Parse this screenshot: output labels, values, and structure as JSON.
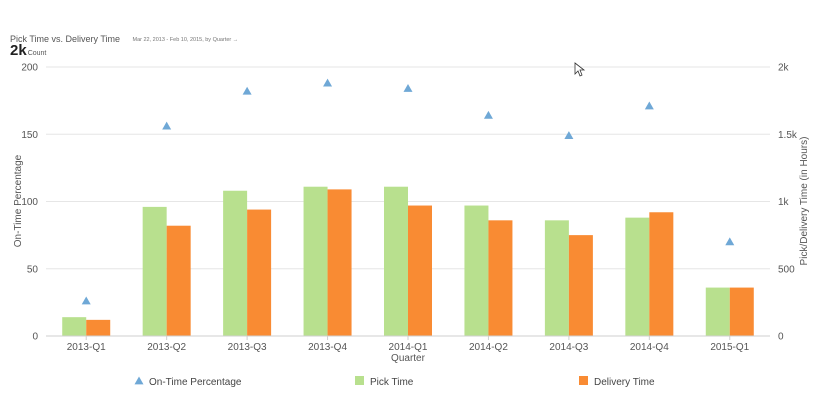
{
  "header": {
    "title": "Pick Time vs. Delivery Time",
    "subtitle": "Mar 22, 2013 - Feb 10, 2015, by Quarter →"
  },
  "metric": {
    "value": "2k",
    "label": "Count"
  },
  "colors": {
    "on_time": "#6fa8d6",
    "pick": "#b8e08e",
    "delivery": "#f98b33",
    "grid": "#e6e6e6"
  },
  "chart_data": {
    "type": "bar",
    "xlabel": "Quarter",
    "ylabel": "On-Time Percentage",
    "y2label": "Pick/Delivery Time (in Hours)",
    "ylim": [
      0,
      200
    ],
    "y2lim": [
      0,
      2000
    ],
    "yticks": [
      "0",
      "50",
      "100",
      "150",
      "200"
    ],
    "y2ticks": [
      "0",
      "500",
      "1k",
      "1.5k",
      "2k"
    ],
    "grid": true,
    "legend_position": "bottom",
    "categories": [
      "2013-Q1",
      "2013-Q2",
      "2013-Q3",
      "2013-Q4",
      "2014-Q1",
      "2014-Q2",
      "2014-Q3",
      "2014-Q4",
      "2015-Q1"
    ],
    "series": [
      {
        "name": "On-Time Percentage",
        "type": "scatter",
        "marker": "triangle",
        "axis": "left",
        "values": [
          26,
          156,
          182,
          188,
          184,
          164,
          149,
          171,
          70
        ]
      },
      {
        "name": "Pick Time",
        "type": "bar",
        "axis": "right",
        "values": [
          140,
          960,
          1080,
          1110,
          1110,
          970,
          860,
          880,
          360
        ]
      },
      {
        "name": "Delivery Time",
        "type": "bar",
        "axis": "right",
        "values": [
          120,
          820,
          940,
          1090,
          970,
          860,
          750,
          920,
          360
        ]
      }
    ]
  }
}
